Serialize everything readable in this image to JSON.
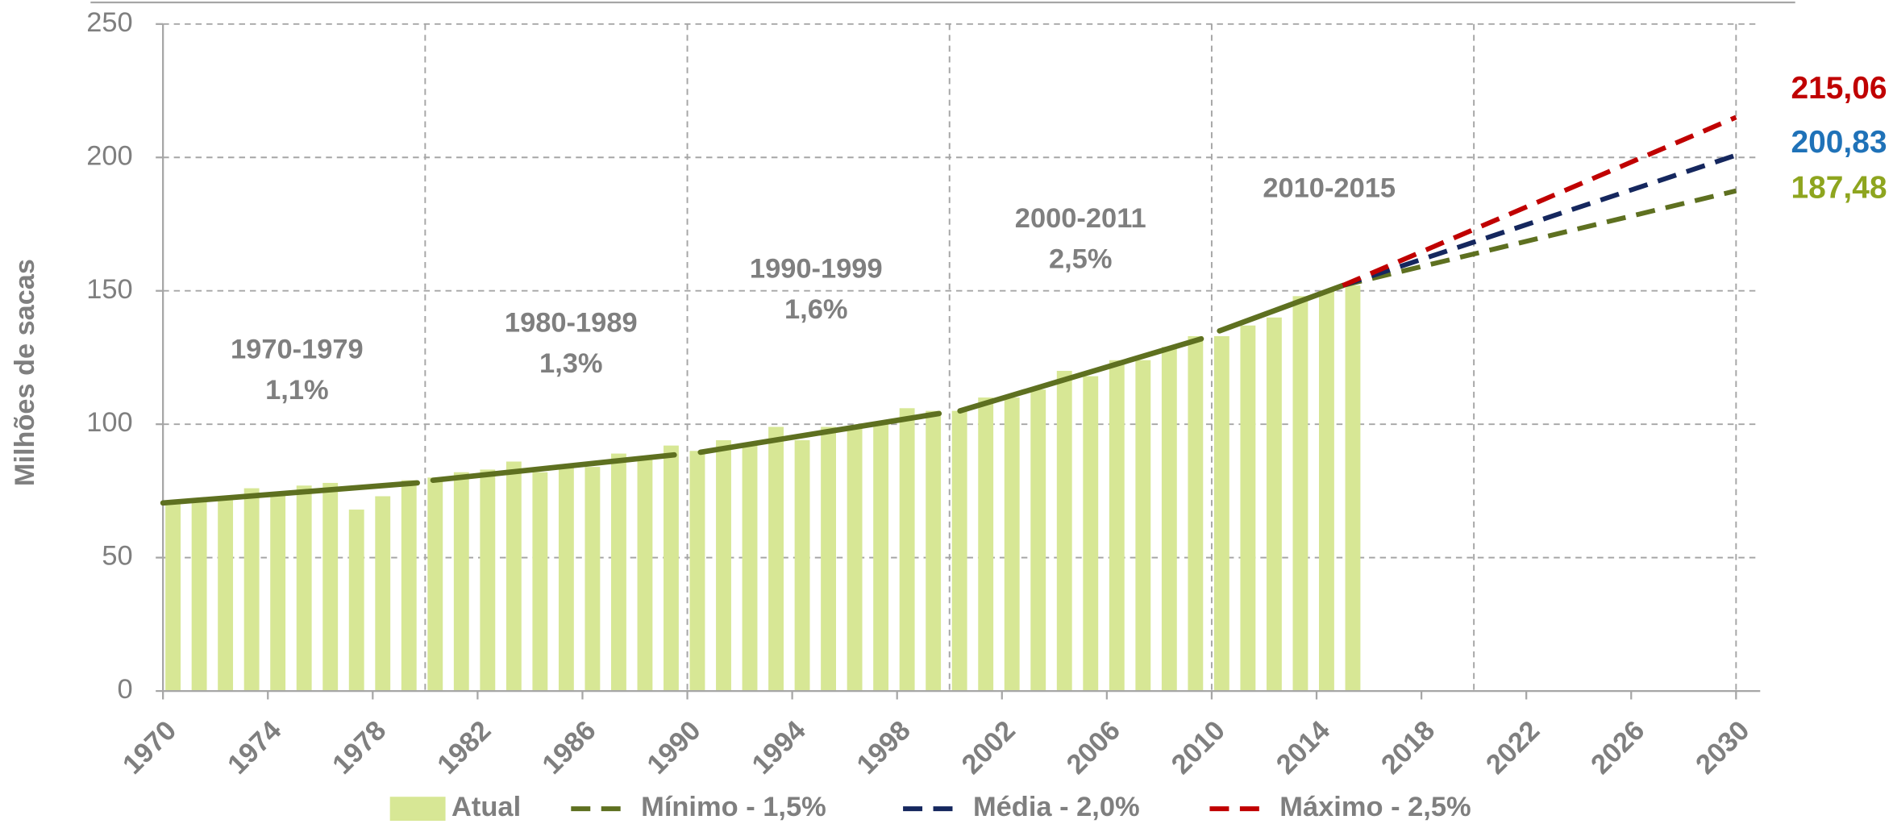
{
  "chart_data": {
    "type": "bar",
    "y_label": "Milhões de sacas",
    "xlim": [
      1970,
      2030
    ],
    "xticks": [
      1970,
      1974,
      1978,
      1982,
      1986,
      1990,
      1994,
      1998,
      2002,
      2006,
      2010,
      2014,
      2018,
      2022,
      2026,
      2030
    ],
    "ylim": [
      0,
      250
    ],
    "yticks": [
      0,
      50,
      100,
      150,
      200,
      250
    ],
    "grid": true,
    "legend": "bottom",
    "series": [
      {
        "name": "Atual",
        "type": "bar",
        "color": "#d7e795",
        "x": [
          1970,
          1971,
          1972,
          1973,
          1974,
          1975,
          1976,
          1977,
          1978,
          1979,
          1980,
          1981,
          1982,
          1983,
          1984,
          1985,
          1986,
          1987,
          1988,
          1989,
          1990,
          1991,
          1992,
          1993,
          1994,
          1995,
          1996,
          1997,
          1998,
          1999,
          2000,
          2001,
          2002,
          2003,
          2004,
          2005,
          2006,
          2007,
          2008,
          2009,
          2010,
          2011,
          2012,
          2013,
          2014,
          2015
        ],
        "values": [
          70,
          71,
          73,
          76,
          74,
          77,
          78,
          68,
          73,
          79,
          80,
          82,
          83,
          86,
          82,
          85,
          84,
          89,
          88,
          92,
          90,
          94,
          93,
          99,
          94,
          99,
          99,
          101,
          106,
          105,
          105,
          110,
          110,
          113,
          120,
          118,
          124,
          124,
          129,
          133,
          133,
          137,
          140,
          148,
          150,
          152
        ]
      },
      {
        "name": "Mínimo - 1,5%",
        "type": "line",
        "color": "#5e7020",
        "x": [
          2015,
          2030
        ],
        "values": [
          152,
          187.48
        ],
        "value_labels": [
          null,
          "187,48"
        ],
        "label_color": "#8ea51f"
      },
      {
        "name": "Média - 2,0%",
        "type": "line",
        "color": "#15275e",
        "x": [
          2015,
          2030
        ],
        "values": [
          152,
          200.83
        ],
        "value_labels": [
          null,
          "200,83"
        ],
        "label_color": "#1f72b8"
      },
      {
        "name": "Máximo - 2,5%",
        "type": "line",
        "color": "#c00000",
        "x": [
          2015,
          2030
        ],
        "values": [
          152,
          215.06
        ],
        "value_labels": [
          null,
          "215,06"
        ],
        "label_color": "#c00000"
      }
    ],
    "trend_color": "#5e7020",
    "trends": [
      {
        "x": [
          1970,
          1979.7
        ],
        "values": [
          70.5,
          78
        ]
      },
      {
        "x": [
          1980.3,
          1989.5
        ],
        "values": [
          79,
          88.5
        ]
      },
      {
        "x": [
          1990.5,
          1999.6
        ],
        "values": [
          89.5,
          104
        ]
      },
      {
        "x": [
          2000.4,
          2009.6
        ],
        "values": [
          105,
          132
        ]
      },
      {
        "x": [
          2010.3,
          2015
        ],
        "values": [
          135,
          152
        ]
      }
    ],
    "annotations": [
      {
        "lines": [
          "1970-1979",
          "1,1%"
        ]
      },
      {
        "lines": [
          "1980-1989",
          "1,3%"
        ]
      },
      {
        "lines": [
          "1990-1999",
          "1,6%"
        ]
      },
      {
        "lines": [
          "2000-2011",
          "2,5%"
        ]
      },
      {
        "lines": [
          "2010-2015"
        ]
      }
    ]
  }
}
